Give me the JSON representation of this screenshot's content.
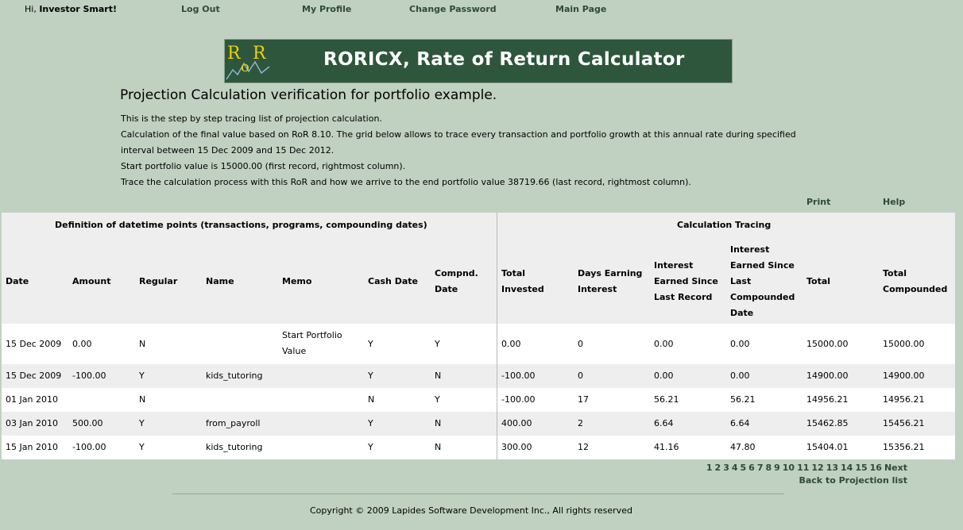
{
  "topnav": {
    "greeting_prefix": "Hi, ",
    "user": "Investor Smart!",
    "logout": "Log Out",
    "profile": "My Profile",
    "change_password": "Change Password",
    "main_page": "Main Page"
  },
  "banner": {
    "logo_text": "RoR",
    "title": "RORICX, Rate of Return Calculator"
  },
  "heading": "Projection Calculation verification for portfolio example.",
  "description": [
    "This is the step by step tracing list of projection calculation.",
    "Calculation of the final value based on RoR 8.10. The grid below allows to trace every transaction and portfolio growth at this annual rate during specified",
    "interval between 15 Dec 2009 and 15 Dec 2012.",
    "Start portfolio value is 15000.00 (first record, rightmost column).",
    "Trace the calculation process with this RoR and how we arrive to the end portfolio value 38719.66 (last record, rightmost column)."
  ],
  "actions": {
    "print": "Print",
    "help": "Help"
  },
  "grid": {
    "group_left": "Definition of datetime points (transactions, programs, compounding dates)",
    "group_right": "Calculation Tracing",
    "columns": [
      [
        "Date"
      ],
      [
        "Amount"
      ],
      [
        "Regular"
      ],
      [
        "Name"
      ],
      [
        "Memo"
      ],
      [
        "Cash Date"
      ],
      [
        "Compnd.",
        "Date"
      ],
      [
        "Total",
        "Invested"
      ],
      [
        "Days Earning",
        "Interest"
      ],
      [
        "Interest",
        "Earned Since",
        "Last Record"
      ],
      [
        "Interest",
        "Earned Since",
        "Last",
        "Compounded",
        "Date"
      ],
      [
        "Total"
      ],
      [
        "Total",
        "Compounded"
      ]
    ],
    "rows": [
      [
        "15 Dec 2009",
        "0.00",
        "N",
        "",
        "Start Portfolio Value",
        "Y",
        "Y",
        "0.00",
        "0",
        "0.00",
        "0.00",
        "15000.00",
        "15000.00"
      ],
      [
        "15 Dec 2009",
        "-100.00",
        "Y",
        "kids_tutoring",
        "",
        "Y",
        "N",
        "-100.00",
        "0",
        "0.00",
        "0.00",
        "14900.00",
        "14900.00"
      ],
      [
        "01 Jan 2010",
        "",
        "N",
        "",
        "",
        "N",
        "Y",
        "-100.00",
        "17",
        "56.21",
        "56.21",
        "14956.21",
        "14956.21"
      ],
      [
        "03 Jan 2010",
        "500.00",
        "Y",
        "from_payroll",
        "",
        "Y",
        "N",
        "400.00",
        "2",
        "6.64",
        "6.64",
        "15462.85",
        "15456.21"
      ],
      [
        "15 Jan 2010",
        "-100.00",
        "Y",
        "kids_tutoring",
        "",
        "Y",
        "N",
        "300.00",
        "12",
        "41.16",
        "47.80",
        "15404.01",
        "15356.21"
      ]
    ]
  },
  "pager": {
    "pages": [
      "1",
      "2",
      "3",
      "4",
      "5",
      "6",
      "7",
      "8",
      "9",
      "10",
      "11",
      "12",
      "13",
      "14",
      "15",
      "16"
    ],
    "next": "Next"
  },
  "back_link": "Back to Projection list",
  "copyright": "Copyright © 2009 Lapides Software Development Inc., All rights reserved"
}
